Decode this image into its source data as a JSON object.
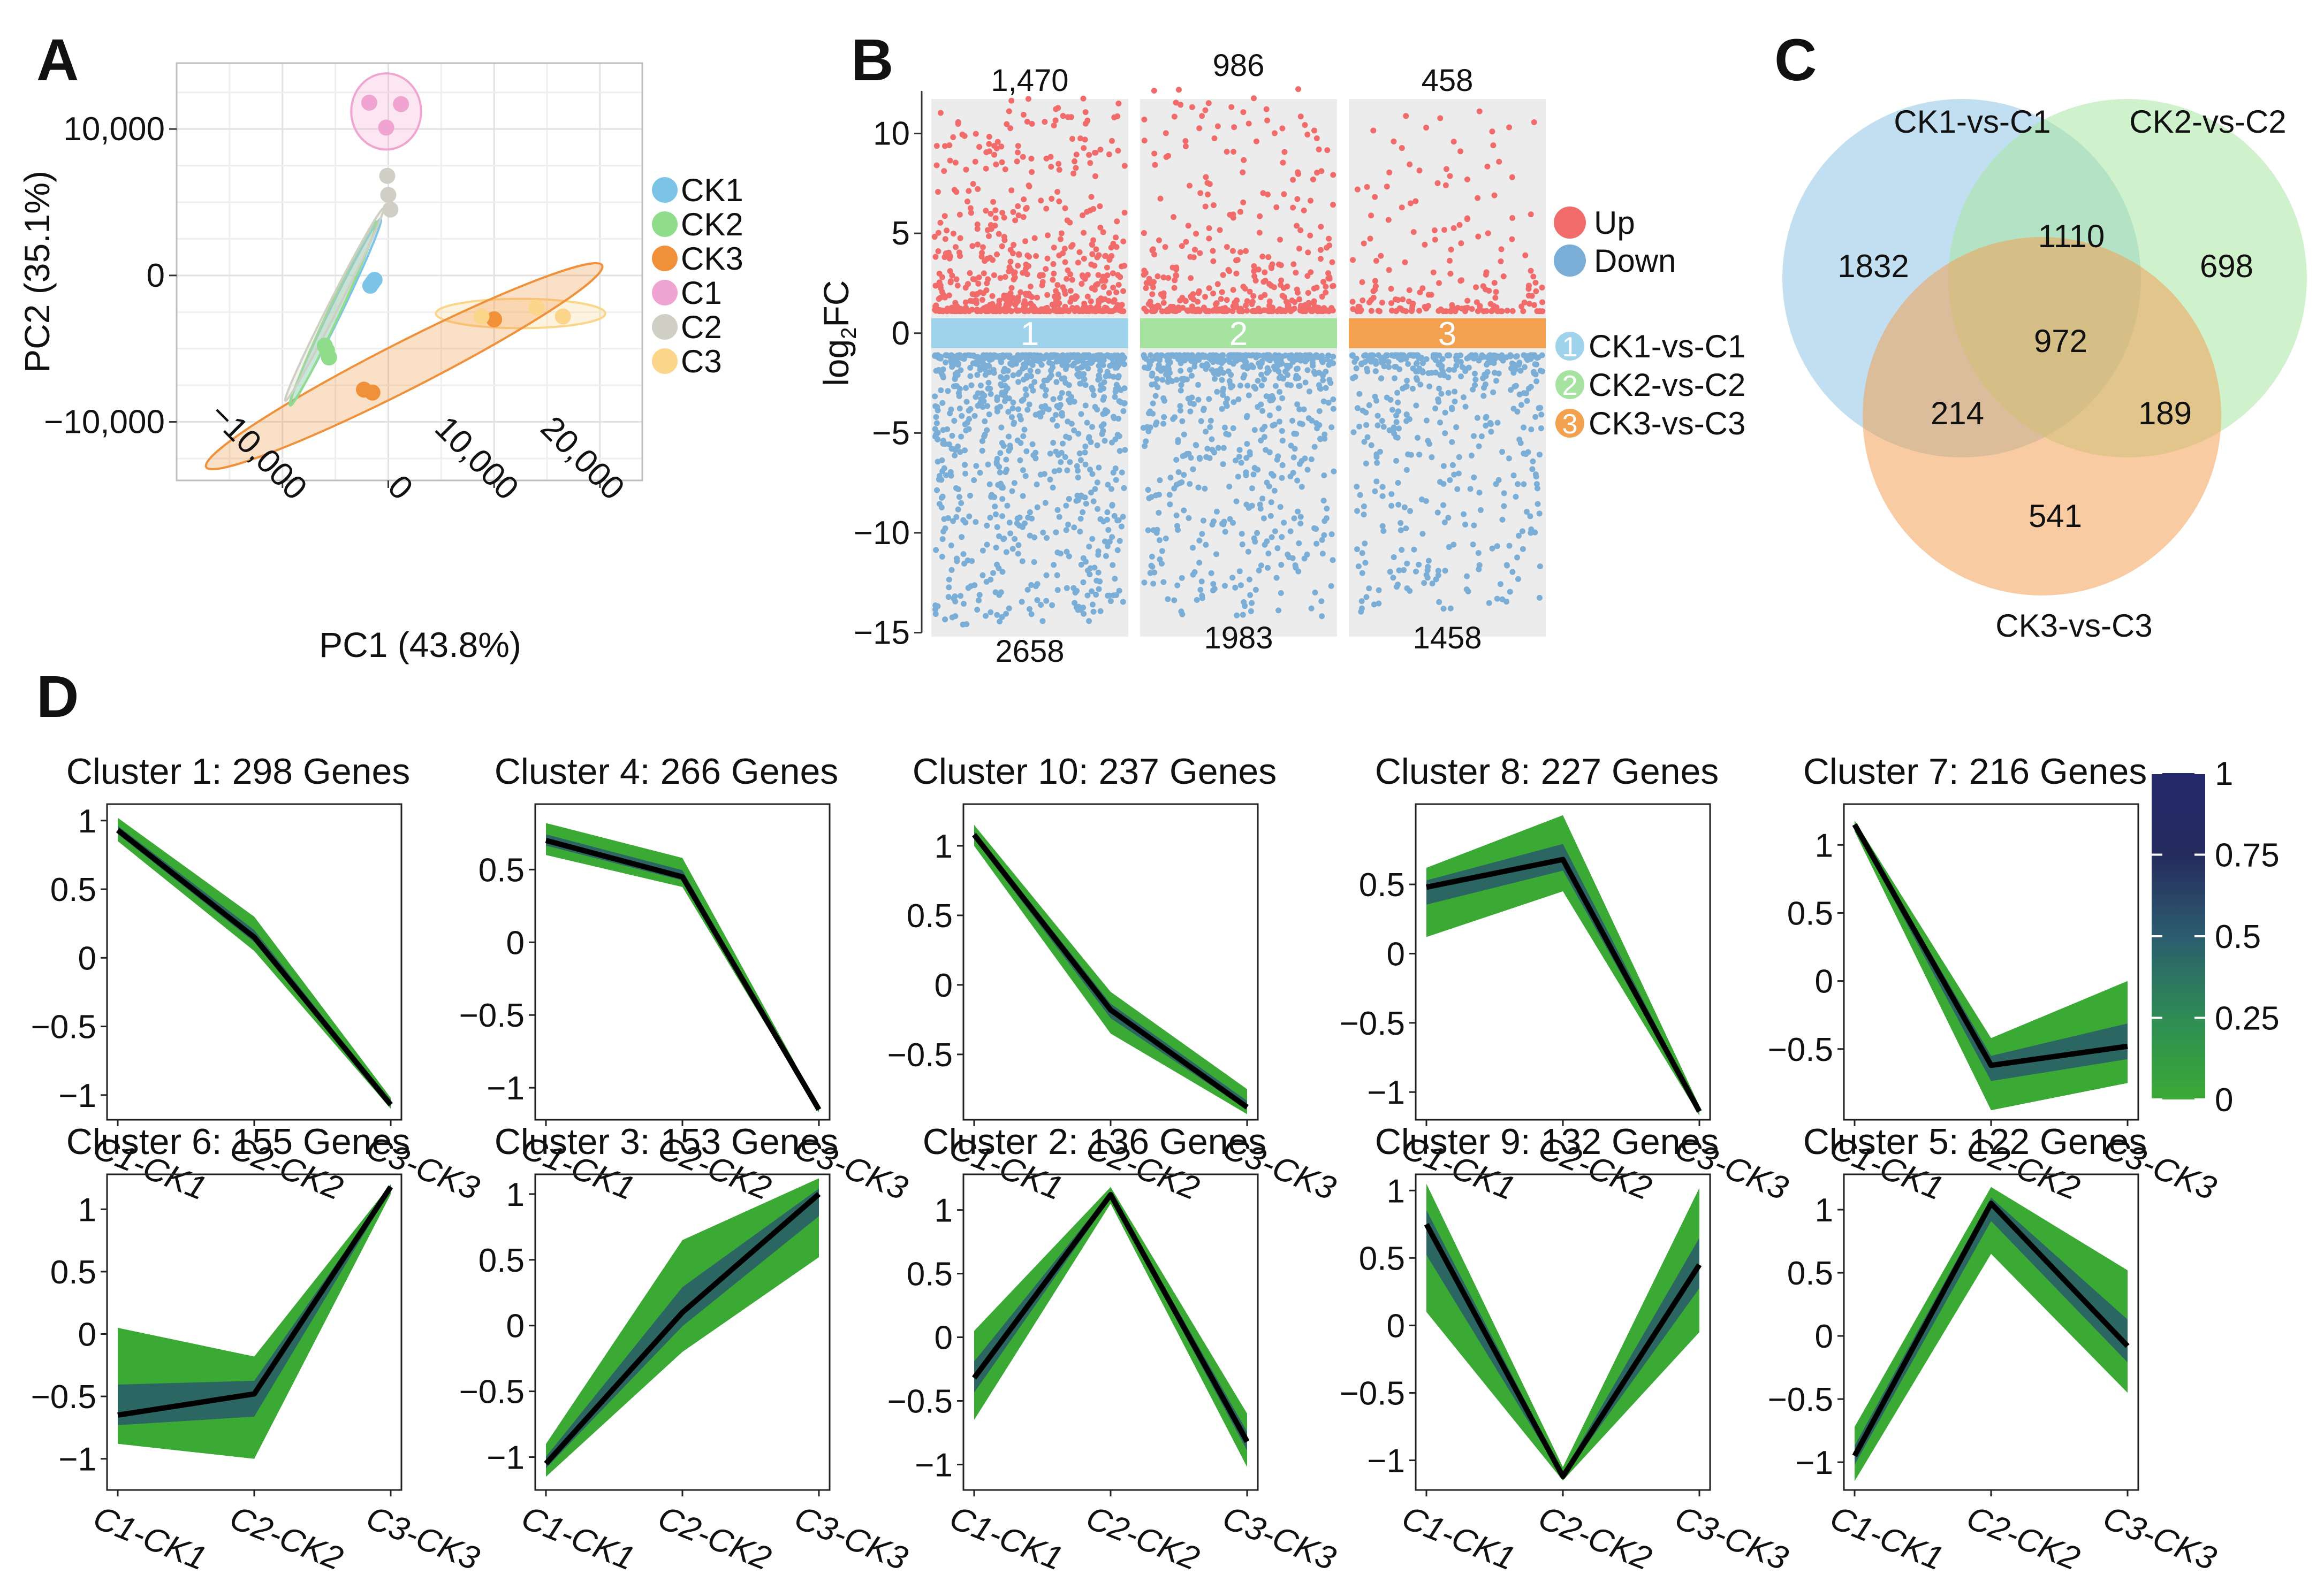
{
  "panels": {
    "a": "A",
    "b": "B",
    "c": "C",
    "d": "D"
  },
  "chart_data": [
    {
      "type": "scatter",
      "panel": "A",
      "title": "",
      "xlabel": "PC1 (43.8%)",
      "ylabel": "PC2 (35.1%)",
      "xlim": [
        -20000,
        24000
      ],
      "ylim": [
        -14000,
        14500
      ],
      "xticks": [
        {
          "v": -10000,
          "label": "−10,000"
        },
        {
          "v": 0,
          "label": "0"
        },
        {
          "v": 10000,
          "label": "10,000"
        },
        {
          "v": 20000,
          "label": "20,000"
        }
      ],
      "yticks": [
        {
          "v": 10000,
          "label": "10,000"
        },
        {
          "v": 0,
          "label": "0"
        },
        {
          "v": -10000,
          "label": "−10,000"
        }
      ],
      "grid": true,
      "legend_position": "right",
      "series": [
        {
          "name": "CK1",
          "color": "#7cc3e8",
          "points": [
            [
              -1500,
              -500
            ],
            [
              -1300,
              -300
            ],
            [
              -1700,
              -700
            ]
          ]
        },
        {
          "name": "CK2",
          "color": "#8fdc8a",
          "points": [
            [
              -5800,
              -5100
            ],
            [
              -5600,
              -5600
            ],
            [
              -6000,
              -4800
            ]
          ]
        },
        {
          "name": "CK3",
          "color": "#f0913a",
          "points": [
            [
              -2300,
              -7800
            ],
            [
              -1500,
              -8000
            ],
            [
              10000,
              -3000
            ]
          ]
        },
        {
          "name": "C1",
          "color": "#f0a4d2",
          "points": [
            [
              -1800,
              11800
            ],
            [
              -200,
              10100
            ],
            [
              1200,
              11700
            ]
          ]
        },
        {
          "name": "C2",
          "color": "#cfcfc6",
          "points": [
            [
              -100,
              6800
            ],
            [
              0,
              5500
            ],
            [
              200,
              4500
            ]
          ]
        },
        {
          "name": "C3",
          "color": "#fbd58a",
          "points": [
            [
              8800,
              -2800
            ],
            [
              14000,
              -2200
            ],
            [
              16500,
              -2800
            ]
          ]
        }
      ],
      "ellipses": [
        {
          "group": "C1",
          "color": "#f0a4d2",
          "center": [
            -200,
            11200
          ],
          "rx": 3300,
          "ry": 2600,
          "angle": 0
        },
        {
          "group": "C3",
          "color": "#fbd58a",
          "center": [
            12500,
            -2600
          ],
          "rx": 8000,
          "ry": 1000,
          "angle": 0
        },
        {
          "group": "CK3",
          "color": "#f0913a",
          "center": [
            1500,
            -6200
          ],
          "rx": 21000,
          "ry": 1600,
          "angle": -27
        },
        {
          "group": "CK1",
          "color": "#7cc3e8",
          "center": [
            -5000,
            -2500
          ],
          "rx": 9800,
          "ry": 400,
          "angle": -64
        },
        {
          "group": "CK2",
          "color": "#8fdc8a",
          "center": [
            -5200,
            -2600
          ],
          "rx": 9600,
          "ry": 400,
          "angle": -65
        },
        {
          "group": "C2",
          "color": "#cfcfc6",
          "center": [
            -5100,
            -2000
          ],
          "rx": 10200,
          "ry": 350,
          "angle": -63
        }
      ]
    },
    {
      "type": "scatter",
      "panel": "B",
      "ylabel": "log2FC",
      "ylim": [
        -15.2,
        12.4
      ],
      "yticks": [
        10,
        5,
        0,
        -5,
        -10,
        -15
      ],
      "legend": {
        "up": "Up",
        "down": "Down",
        "up_color": "#f26b6b",
        "down_color": "#7aaed6"
      },
      "groups": [
        {
          "label": "1",
          "name": "CK1-vs-C1",
          "color": "#9fd3ec",
          "up": 1470,
          "up_label": "1,470",
          "down": 2658,
          "down_label": "2658",
          "up_max": 11.9,
          "down_min": -14.6
        },
        {
          "label": "2",
          "name": "CK2-vs-C2",
          "color": "#a6e3a0",
          "up": 986,
          "up_label": "986",
          "down": 1983,
          "down_label": "1983",
          "up_max": 12.3,
          "down_min": -14.2
        },
        {
          "label": "3",
          "name": "CK3-vs-C3",
          "color": "#f3a14f",
          "up": 458,
          "up_label": "458",
          "down": 1458,
          "down_label": "1458",
          "up_max": 11.5,
          "down_min": -14.1
        }
      ]
    },
    {
      "type": "venn",
      "panel": "C",
      "sets": [
        {
          "name": "CK1-vs-C1",
          "color": "#8ec5e4"
        },
        {
          "name": "CK2-vs-C2",
          "color": "#a8e6a0"
        },
        {
          "name": "CK3-vs-C3",
          "color": "#f2a055"
        }
      ],
      "regions": [
        {
          "sets": [
            "CK1-vs-C1"
          ],
          "value": 1832
        },
        {
          "sets": [
            "CK1-vs-C1",
            "CK2-vs-C2"
          ],
          "value": 1110
        },
        {
          "sets": [
            "CK2-vs-C2"
          ],
          "value": 698
        },
        {
          "sets": [
            "CK1-vs-C1",
            "CK2-vs-C2",
            "CK3-vs-C3"
          ],
          "value": 972
        },
        {
          "sets": [
            "CK1-vs-C1",
            "CK3-vs-C3"
          ],
          "value": 214
        },
        {
          "sets": [
            "CK2-vs-C2",
            "CK3-vs-C3"
          ],
          "value": 189
        },
        {
          "sets": [
            "CK3-vs-C3"
          ],
          "value": 541
        }
      ]
    },
    {
      "type": "line",
      "panel": "D",
      "categories": [
        "C1-CK1",
        "C2-CK2",
        "C3-CK3"
      ],
      "colorbar": {
        "ticks": [
          {
            "v": 1,
            "label": "1"
          },
          {
            "v": 0.75,
            "label": "0.75"
          },
          {
            "v": 0.5,
            "label": "0.5"
          },
          {
            "v": 0.25,
            "label": "0.25"
          },
          {
            "v": 0,
            "label": "0"
          }
        ],
        "colors": [
          "#3aaa35",
          "#2f8c55",
          "#2b5c6e",
          "#262b5e",
          "#25286b"
        ]
      },
      "clusters": [
        {
          "title": "Cluster 1: 298 Genes",
          "ylim": [
            -1.18,
            1.12
          ],
          "yticks": [
            {
              "v": 1,
              "label": "1"
            },
            {
              "v": 0.5,
              "label": "0.5"
            },
            {
              "v": 0,
              "label": "0"
            },
            {
              "v": -0.5,
              "label": "−0.5"
            },
            {
              "v": -1,
              "label": "−1"
            }
          ],
          "mean": [
            0.93,
            0.15,
            -1.07
          ],
          "upper": [
            1.02,
            0.3,
            -1.02
          ],
          "lower": [
            0.85,
            0.05,
            -1.1
          ]
        },
        {
          "title": "Cluster 4: 266 Genes",
          "ylim": [
            -1.22,
            0.95
          ],
          "yticks": [
            {
              "v": 0.5,
              "label": "0.5"
            },
            {
              "v": 0,
              "label": "0"
            },
            {
              "v": -0.5,
              "label": "−0.5"
            },
            {
              "v": -1,
              "label": "−1"
            }
          ],
          "mean": [
            0.7,
            0.45,
            -1.15
          ],
          "upper": [
            0.82,
            0.58,
            -1.13
          ],
          "lower": [
            0.6,
            0.38,
            -1.17
          ]
        },
        {
          "title": "Cluster 10: 237 Genes",
          "ylim": [
            -0.97,
            1.3
          ],
          "yticks": [
            {
              "v": 1,
              "label": "1"
            },
            {
              "v": 0.5,
              "label": "0.5"
            },
            {
              "v": 0,
              "label": "0"
            },
            {
              "v": -0.5,
              "label": "−0.5"
            }
          ],
          "mean": [
            1.08,
            -0.18,
            -0.88
          ],
          "upper": [
            1.15,
            -0.05,
            -0.75
          ],
          "lower": [
            1.0,
            -0.35,
            -0.93
          ]
        },
        {
          "title": "Cluster 8: 227 Genes",
          "ylim": [
            -1.2,
            1.08
          ],
          "yticks": [
            {
              "v": 0.5,
              "label": "0.5"
            },
            {
              "v": 0,
              "label": "0"
            },
            {
              "v": -0.5,
              "label": "−0.5"
            },
            {
              "v": -1,
              "label": "−1"
            }
          ],
          "mean": [
            0.48,
            0.68,
            -1.14
          ],
          "upper": [
            0.62,
            1.0,
            -1.1
          ],
          "lower": [
            0.12,
            0.45,
            -1.17
          ]
        },
        {
          "title": "Cluster 7: 216 Genes",
          "ylim": [
            -1.02,
            1.3
          ],
          "yticks": [
            {
              "v": 1,
              "label": "1"
            },
            {
              "v": 0.5,
              "label": "0.5"
            },
            {
              "v": 0,
              "label": "0"
            },
            {
              "v": -0.5,
              "label": "−0.5"
            }
          ],
          "mean": [
            1.15,
            -0.62,
            -0.48
          ],
          "upper": [
            1.18,
            -0.42,
            0.0
          ],
          "lower": [
            1.1,
            -0.95,
            -0.75
          ]
        },
        {
          "title": "Cluster 6: 155 Genes",
          "ylim": [
            -1.25,
            1.28
          ],
          "yticks": [
            {
              "v": 1,
              "label": "1"
            },
            {
              "v": 0.5,
              "label": "0.5"
            },
            {
              "v": 0,
              "label": "0"
            },
            {
              "v": -0.5,
              "label": "−0.5"
            },
            {
              "v": -1,
              "label": "−1"
            }
          ],
          "mean": [
            -0.65,
            -0.48,
            1.18
          ],
          "upper": [
            0.05,
            -0.18,
            1.2
          ],
          "lower": [
            -0.88,
            -1.0,
            1.12
          ]
        },
        {
          "title": "Cluster 3: 153 Genes",
          "ylim": [
            -1.25,
            1.15
          ],
          "yticks": [
            {
              "v": 1,
              "label": "1"
            },
            {
              "v": 0.5,
              "label": "0.5"
            },
            {
              "v": 0,
              "label": "0"
            },
            {
              "v": -0.5,
              "label": "−0.5"
            },
            {
              "v": -1,
              "label": "−1"
            }
          ],
          "mean": [
            -1.05,
            0.1,
            1.0
          ],
          "upper": [
            -0.9,
            0.65,
            1.12
          ],
          "lower": [
            -1.15,
            -0.2,
            0.52
          ]
        },
        {
          "title": "Cluster 2: 136 Genes",
          "ylim": [
            -1.2,
            1.28
          ],
          "yticks": [
            {
              "v": 1,
              "label": "1"
            },
            {
              "v": 0.5,
              "label": "0.5"
            },
            {
              "v": 0,
              "label": "0"
            },
            {
              "v": -0.5,
              "label": "−0.5"
            },
            {
              "v": -1,
              "label": "−1"
            }
          ],
          "mean": [
            -0.32,
            1.12,
            -0.82
          ],
          "upper": [
            0.05,
            1.18,
            -0.6
          ],
          "lower": [
            -0.65,
            1.05,
            -1.02
          ]
        },
        {
          "title": "Cluster 9: 132 Genes",
          "ylim": [
            -1.22,
            1.12
          ],
          "yticks": [
            {
              "v": 1,
              "label": "1"
            },
            {
              "v": 0.5,
              "label": "0.5"
            },
            {
              "v": 0,
              "label": "0"
            },
            {
              "v": -0.5,
              "label": "−0.5"
            },
            {
              "v": -1,
              "label": "−1"
            }
          ],
          "mean": [
            0.75,
            -1.12,
            0.45
          ],
          "upper": [
            1.05,
            -1.05,
            1.02
          ],
          "lower": [
            0.1,
            -1.15,
            -0.05
          ]
        },
        {
          "title": "Cluster 5: 122 Genes",
          "ylim": [
            -1.22,
            1.28
          ],
          "yticks": [
            {
              "v": 1,
              "label": "1"
            },
            {
              "v": 0.5,
              "label": "0.5"
            },
            {
              "v": 0,
              "label": "0"
            },
            {
              "v": -0.5,
              "label": "−0.5"
            },
            {
              "v": -1,
              "label": "−1"
            }
          ],
          "mean": [
            -0.95,
            1.05,
            -0.08
          ],
          "upper": [
            -0.72,
            1.18,
            0.52
          ],
          "lower": [
            -1.15,
            0.65,
            -0.45
          ]
        }
      ]
    }
  ]
}
